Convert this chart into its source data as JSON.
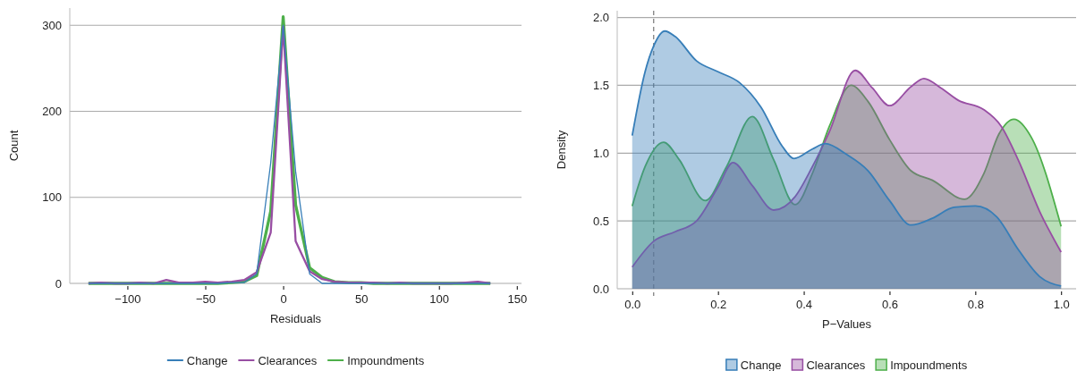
{
  "chart_data": [
    {
      "type": "line",
      "xlabel": "Residuals",
      "ylabel": "Count",
      "x": [
        -125,
        -117,
        -108,
        -100,
        -92,
        -83,
        -75,
        -67,
        -58,
        -50,
        -42,
        -33,
        -25,
        -17,
        -8,
        0,
        8,
        17,
        25,
        33,
        42,
        50,
        58,
        67,
        75,
        83,
        92,
        100,
        108,
        117,
        125,
        133
      ],
      "series": [
        {
          "name": "Change",
          "color": "#377eb8",
          "values": [
            0,
            0,
            0,
            0,
            0,
            0,
            0,
            0,
            0,
            0,
            0,
            1,
            1,
            11,
            140,
            300,
            130,
            11,
            0,
            0,
            0,
            0,
            0,
            0,
            0,
            0,
            0,
            0,
            0,
            0,
            0,
            0
          ]
        },
        {
          "name": "Clearances",
          "color": "#984ea3",
          "values": [
            0,
            1,
            0,
            0,
            1,
            0,
            4,
            1,
            1,
            2,
            1,
            2,
            4,
            13,
            59,
            298,
            49,
            14,
            5,
            2,
            1,
            1,
            1,
            0,
            1,
            0,
            0,
            0,
            0,
            1,
            2,
            0
          ]
        },
        {
          "name": "Impoundments",
          "color": "#4daf4a",
          "values": [
            0,
            0,
            0,
            0,
            0,
            0,
            0,
            0,
            0,
            0,
            0,
            1,
            2,
            9,
            84,
            310,
            91,
            18,
            7,
            2,
            1,
            1,
            0,
            0,
            0,
            0,
            0,
            0,
            0,
            0,
            0,
            0
          ]
        }
      ],
      "xlim": [
        -137,
        153
      ],
      "ylim": [
        0,
        320
      ],
      "xticks": [
        {
          "value": -100,
          "label": "−100"
        },
        {
          "value": -50,
          "label": "−50"
        },
        0,
        50,
        100,
        150
      ],
      "yticks": [
        0,
        100,
        200,
        300
      ],
      "grid": "y",
      "legend": "bottom"
    },
    {
      "type": "area",
      "xlabel": "P−Values",
      "ylabel": "Density",
      "series": [
        {
          "name": "Change",
          "color": "#377eb8",
          "x": [
            0,
            0.03,
            0.05,
            0.076,
            0.1,
            0.15,
            0.2,
            0.25,
            0.3,
            0.35,
            0.377,
            0.42,
            0.45,
            0.5,
            0.55,
            0.6,
            0.65,
            0.7,
            0.75,
            0.8,
            0.85,
            0.9,
            0.95,
            1.0
          ],
          "values": [
            1.13,
            1.6,
            1.79,
            1.9,
            1.86,
            1.68,
            1.6,
            1.52,
            1.34,
            1.05,
            0.96,
            1.03,
            1.07,
            0.99,
            0.87,
            0.65,
            0.47,
            0.52,
            0.6,
            0.61,
            0.53,
            0.29,
            0.09,
            0.02
          ]
        },
        {
          "name": "Clearances",
          "color": "#984ea3",
          "x": [
            0,
            0.05,
            0.1,
            0.15,
            0.2,
            0.235,
            0.28,
            0.33,
            0.38,
            0.42,
            0.46,
            0.52,
            0.56,
            0.6,
            0.65,
            0.68,
            0.72,
            0.76,
            0.82,
            0.86,
            0.9,
            0.95,
            1.0
          ],
          "values": [
            0.16,
            0.35,
            0.42,
            0.5,
            0.75,
            0.93,
            0.76,
            0.58,
            0.68,
            0.9,
            1.16,
            1.61,
            1.48,
            1.35,
            1.49,
            1.55,
            1.48,
            1.39,
            1.32,
            1.2,
            0.95,
            0.57,
            0.27
          ]
        },
        {
          "name": "Impoundments",
          "color": "#4daf4a",
          "x": [
            0,
            0.03,
            0.073,
            0.11,
            0.17,
            0.22,
            0.28,
            0.33,
            0.38,
            0.42,
            0.46,
            0.51,
            0.55,
            0.6,
            0.65,
            0.7,
            0.775,
            0.82,
            0.855,
            0.89,
            0.93,
            1.0
          ],
          "values": [
            0.61,
            0.9,
            1.08,
            0.95,
            0.65,
            0.9,
            1.27,
            0.95,
            0.62,
            0.85,
            1.2,
            1.5,
            1.38,
            1.1,
            0.87,
            0.8,
            0.66,
            0.85,
            1.14,
            1.25,
            1.12,
            0.46
          ]
        }
      ],
      "xlim": [
        -0.035,
        1.035
      ],
      "ylim": [
        0,
        2.05
      ],
      "xticks": [
        {
          "value": 0,
          "label": "0.0"
        },
        {
          "value": 0.2,
          "label": "0.2"
        },
        {
          "value": 0.4,
          "label": "0.4"
        },
        {
          "value": 0.6,
          "label": "0.6"
        },
        {
          "value": 0.8,
          "label": "0.8"
        },
        {
          "value": 1,
          "label": "1.0"
        }
      ],
      "yticks": [
        {
          "value": 0,
          "label": "0.0"
        },
        {
          "value": 0.5,
          "label": "0.5"
        },
        {
          "value": 1,
          "label": "1.0"
        },
        {
          "value": 1.5,
          "label": "1.5"
        },
        {
          "value": 2,
          "label": "2.0"
        }
      ],
      "ref_lines": [
        {
          "axis": "x",
          "value": 0.05,
          "color": "#777777",
          "line_style": "dashed"
        }
      ],
      "grid": "y",
      "legend": "bottom"
    }
  ]
}
